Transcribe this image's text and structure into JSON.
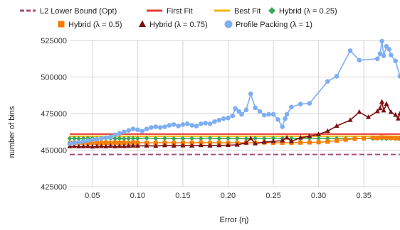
{
  "chart_data": {
    "type": "line",
    "title": "",
    "xlabel": "Error (η)",
    "ylabel": "number of bins",
    "xlim": [
      0.025,
      0.39
    ],
    "ylim": [
      425000,
      525000
    ],
    "x_ticks": [
      0.05,
      0.1,
      0.15,
      0.2,
      0.25,
      0.3,
      0.35
    ],
    "x_tick_labels": [
      "0.05",
      "0.10",
      "0.15",
      "0.20",
      "0.25",
      "0.30",
      "0.35"
    ],
    "y_ticks": [
      425000,
      450000,
      475000,
      500000,
      525000
    ],
    "y_tick_labels": [
      "425000",
      "450000",
      "475000",
      "500000",
      "525000"
    ],
    "grid": true,
    "legend_position": "top",
    "series": [
      {
        "name": "L2 Lower Bound (Opt)",
        "color": "#a64d79",
        "style": "dashed",
        "marker": "none",
        "x": [
          0.025,
          0.39
        ],
        "y": [
          447000,
          447000
        ]
      },
      {
        "name": "First Fit",
        "color": "#e53935",
        "style": "solid",
        "marker": "none",
        "x": [
          0.025,
          0.39
        ],
        "y": [
          461000,
          461000
        ]
      },
      {
        "name": "Best Fit",
        "color": "#f4b400",
        "style": "solid",
        "marker": "none",
        "x": [
          0.025,
          0.39
        ],
        "y": [
          459500,
          459500
        ]
      },
      {
        "name": "Hybrid (λ = 0.25)",
        "color": "#3aa757",
        "style": "solid",
        "marker": "diamond",
        "x": [
          0.025,
          0.03,
          0.035,
          0.04,
          0.045,
          0.05,
          0.055,
          0.06,
          0.065,
          0.07,
          0.075,
          0.08,
          0.085,
          0.09,
          0.095,
          0.1,
          0.11,
          0.12,
          0.13,
          0.14,
          0.15,
          0.16,
          0.17,
          0.18,
          0.19,
          0.2,
          0.21,
          0.22,
          0.23,
          0.24,
          0.25,
          0.26,
          0.27,
          0.28,
          0.29,
          0.3,
          0.31,
          0.32,
          0.33,
          0.34,
          0.35,
          0.36,
          0.365,
          0.37,
          0.375,
          0.38,
          0.385,
          0.39
        ],
        "y": [
          458000,
          458100,
          457900,
          458000,
          458200,
          458000,
          457900,
          458100,
          458000,
          458200,
          458000,
          458100,
          457900,
          458000,
          458100,
          458000,
          458200,
          458000,
          458100,
          457900,
          458000,
          458100,
          458000,
          458200,
          458000,
          458100,
          458000,
          457900,
          458100,
          458000,
          458200,
          458000,
          458100,
          458000,
          458200,
          458000,
          458100,
          458000,
          457900,
          458000,
          458100,
          458000,
          458200,
          458000,
          457800,
          458100,
          457900,
          458000
        ]
      },
      {
        "name": "Hybrid (λ = 0.5)",
        "color": "#f57c00",
        "style": "solid",
        "marker": "square",
        "x": [
          0.025,
          0.03,
          0.035,
          0.04,
          0.045,
          0.05,
          0.055,
          0.06,
          0.065,
          0.07,
          0.075,
          0.08,
          0.085,
          0.09,
          0.095,
          0.1,
          0.11,
          0.12,
          0.13,
          0.14,
          0.15,
          0.16,
          0.17,
          0.18,
          0.19,
          0.2,
          0.21,
          0.22,
          0.23,
          0.24,
          0.25,
          0.26,
          0.27,
          0.28,
          0.29,
          0.3,
          0.31,
          0.32,
          0.33,
          0.34,
          0.35,
          0.36,
          0.365,
          0.37,
          0.375,
          0.38,
          0.385,
          0.39
        ],
        "y": [
          455000,
          455100,
          455000,
          455200,
          455000,
          455100,
          454900,
          455000,
          455100,
          455000,
          455200,
          455000,
          455100,
          455000,
          455200,
          455100,
          455000,
          455000,
          455100,
          455000,
          455100,
          455000,
          455200,
          455000,
          455100,
          455000,
          455000,
          455100,
          455000,
          455200,
          455000,
          455100,
          455000,
          455200,
          455300,
          455400,
          455800,
          456500,
          457200,
          457800,
          458000,
          458500,
          458300,
          458800,
          458600,
          458400,
          458200,
          458000
        ]
      },
      {
        "name": "Hybrid (λ = 0.75)",
        "color": "#7b1113",
        "style": "solid",
        "marker": "triangle",
        "x": [
          0.025,
          0.03,
          0.035,
          0.04,
          0.045,
          0.05,
          0.055,
          0.06,
          0.065,
          0.07,
          0.075,
          0.08,
          0.085,
          0.09,
          0.095,
          0.1,
          0.11,
          0.12,
          0.13,
          0.14,
          0.15,
          0.16,
          0.17,
          0.18,
          0.19,
          0.2,
          0.21,
          0.22,
          0.225,
          0.23,
          0.24,
          0.25,
          0.26,
          0.265,
          0.27,
          0.28,
          0.29,
          0.3,
          0.31,
          0.32,
          0.335,
          0.345,
          0.355,
          0.365,
          0.368,
          0.37,
          0.372,
          0.375,
          0.38,
          0.385,
          0.388,
          0.39
        ],
        "y": [
          452500,
          452600,
          452400,
          452500,
          452600,
          452300,
          452500,
          452600,
          452400,
          452800,
          452500,
          452700,
          452600,
          452800,
          453000,
          452900,
          453000,
          452800,
          453200,
          453000,
          453100,
          453000,
          453300,
          453000,
          453200,
          453400,
          453600,
          455000,
          458000,
          454500,
          455500,
          456000,
          456500,
          458500,
          456000,
          458500,
          459500,
          460800,
          463000,
          466500,
          470500,
          476000,
          472500,
          476500,
          478500,
          483000,
          477000,
          481500,
          476000,
          474000,
          471500,
          475000
        ]
      },
      {
        "name": "Profile Packing (λ = 1)",
        "color": "#7eaef2",
        "style": "solid",
        "marker": "circle",
        "x": [
          0.025,
          0.03,
          0.035,
          0.04,
          0.045,
          0.05,
          0.055,
          0.06,
          0.065,
          0.07,
          0.075,
          0.08,
          0.085,
          0.09,
          0.095,
          0.1,
          0.105,
          0.11,
          0.115,
          0.12,
          0.125,
          0.13,
          0.135,
          0.14,
          0.145,
          0.15,
          0.155,
          0.16,
          0.165,
          0.17,
          0.175,
          0.18,
          0.185,
          0.19,
          0.195,
          0.2,
          0.205,
          0.208,
          0.212,
          0.215,
          0.22,
          0.225,
          0.23,
          0.235,
          0.24,
          0.245,
          0.25,
          0.255,
          0.26,
          0.263,
          0.265,
          0.27,
          0.28,
          0.29,
          0.31,
          0.32,
          0.335,
          0.345,
          0.365,
          0.368,
          0.37,
          0.372,
          0.375,
          0.378,
          0.38,
          0.385,
          0.39
        ],
        "y": [
          454500,
          455000,
          455500,
          456000,
          456500,
          457000,
          457500,
          458000,
          458500,
          459000,
          460500,
          461500,
          462500,
          463500,
          464500,
          464000,
          463000,
          464500,
          465500,
          466000,
          465500,
          466000,
          467000,
          467500,
          466500,
          467500,
          468000,
          467000,
          466500,
          468000,
          468500,
          468000,
          469500,
          470500,
          471500,
          472000,
          473500,
          478500,
          476500,
          474500,
          477500,
          488500,
          479000,
          476500,
          474000,
          474500,
          474500,
          471000,
          466000,
          471500,
          474500,
          479500,
          481500,
          482000,
          497000,
          500500,
          518000,
          511500,
          512500,
          516000,
          524500,
          514500,
          521000,
          519000,
          515000,
          511000,
          500500
        ]
      }
    ]
  }
}
